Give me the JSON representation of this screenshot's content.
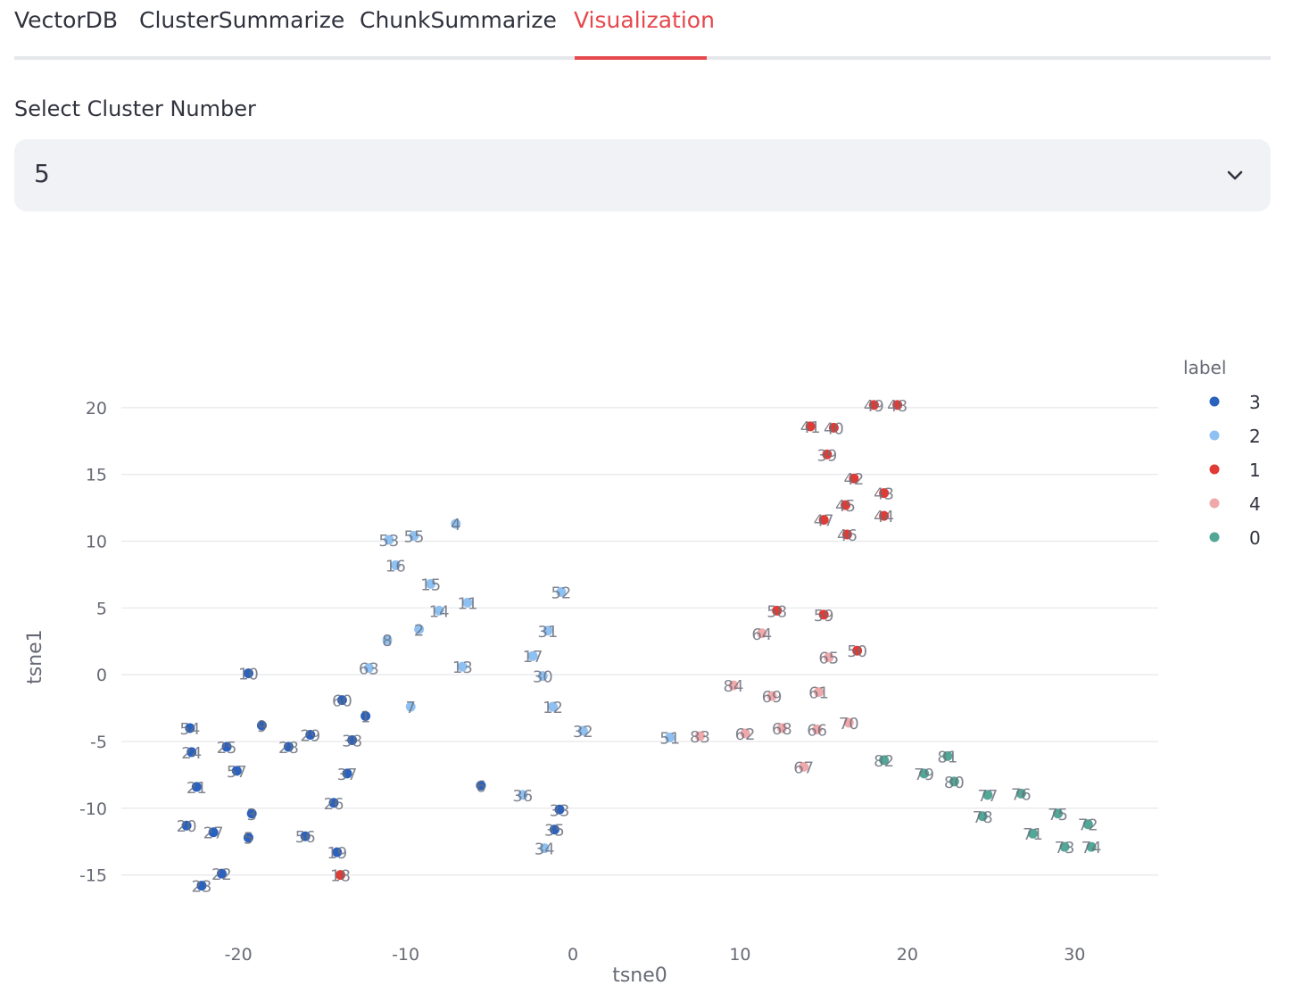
{
  "tabs": {
    "items": [
      "VectorDB",
      "ClusterSummarize",
      "ChunkSummarize",
      "Visualization"
    ],
    "active": 3
  },
  "select": {
    "label": "Select Cluster Number",
    "value": "5",
    "icon": "chevron-down-icon"
  },
  "colors": {
    "accent": "#e5484d",
    "label_3": "#2b62bd",
    "label_2": "#8ec1f2",
    "label_1": "#e03b34",
    "label_4": "#f0a9aa",
    "label_0": "#52a796"
  },
  "chart_data": {
    "type": "scatter",
    "xlabel": "tsne0",
    "ylabel": "tsne1",
    "xlim": [
      -27,
      35
    ],
    "ylim": [
      -17.5,
      23
    ],
    "xticks": [
      -20,
      -10,
      0,
      10,
      20,
      30
    ],
    "yticks": [
      -15,
      -10,
      -5,
      0,
      5,
      10,
      15,
      20
    ],
    "grid": true,
    "legend": {
      "title": "label",
      "placement": "right",
      "entries": [
        "3",
        "2",
        "1",
        "4",
        "0"
      ]
    },
    "series": [
      {
        "name": "3",
        "points": [
          {
            "id": "54",
            "x": -22.9,
            "y": -4.0
          },
          {
            "id": "24",
            "x": -22.8,
            "y": -5.8
          },
          {
            "id": "21",
            "x": -22.5,
            "y": -8.4
          },
          {
            "id": "20",
            "x": -23.1,
            "y": -11.3
          },
          {
            "id": "27",
            "x": -21.5,
            "y": -11.8
          },
          {
            "id": "22",
            "x": -21.0,
            "y": -14.9
          },
          {
            "id": "23",
            "x": -22.2,
            "y": -15.8
          },
          {
            "id": "25",
            "x": -20.7,
            "y": -5.4
          },
          {
            "id": "57",
            "x": -20.1,
            "y": -7.2
          },
          {
            "id": "10",
            "x": -19.4,
            "y": 0.1
          },
          {
            "id": "9",
            "x": -18.6,
            "y": -3.8
          },
          {
            "id": "3",
            "x": -19.2,
            "y": -10.4
          },
          {
            "id": "5",
            "x": -19.4,
            "y": -12.2
          },
          {
            "id": "28",
            "x": -17.0,
            "y": -5.4
          },
          {
            "id": "29",
            "x": -15.7,
            "y": -4.5
          },
          {
            "id": "56",
            "x": -16.0,
            "y": -12.1
          },
          {
            "id": "26",
            "x": -14.3,
            "y": -9.6
          },
          {
            "id": "19",
            "x": -14.1,
            "y": -13.3
          },
          {
            "id": "60",
            "x": -13.8,
            "y": -1.9
          },
          {
            "id": "38",
            "x": -13.2,
            "y": -4.9
          },
          {
            "id": "37",
            "x": -13.5,
            "y": -7.4
          },
          {
            "id": "1",
            "x": -12.4,
            "y": -3.1
          },
          {
            "id": "6",
            "x": -5.5,
            "y": -8.3
          },
          {
            "id": "33",
            "x": -0.8,
            "y": -10.1
          },
          {
            "id": "35",
            "x": -1.1,
            "y": -11.6
          }
        ]
      },
      {
        "name": "2",
        "points": [
          {
            "id": "53",
            "x": -11.0,
            "y": 10.1
          },
          {
            "id": "55",
            "x": -9.5,
            "y": 10.4
          },
          {
            "id": "16",
            "x": -10.6,
            "y": 8.2
          },
          {
            "id": "4",
            "x": -7.0,
            "y": 11.3
          },
          {
            "id": "15",
            "x": -8.5,
            "y": 6.8
          },
          {
            "id": "11",
            "x": -6.3,
            "y": 5.4
          },
          {
            "id": "14",
            "x": -8.0,
            "y": 4.8
          },
          {
            "id": "2",
            "x": -9.2,
            "y": 3.4
          },
          {
            "id": "8",
            "x": -11.1,
            "y": 2.6
          },
          {
            "id": "63",
            "x": -12.2,
            "y": 0.5
          },
          {
            "id": "13",
            "x": -6.6,
            "y": 0.6
          },
          {
            "id": "7",
            "x": -9.7,
            "y": -2.4
          },
          {
            "id": "52",
            "x": -0.7,
            "y": 6.2
          },
          {
            "id": "31",
            "x": -1.5,
            "y": 3.3
          },
          {
            "id": "17",
            "x": -2.4,
            "y": 1.4
          },
          {
            "id": "30",
            "x": -1.8,
            "y": -0.1
          },
          {
            "id": "12",
            "x": -1.2,
            "y": -2.4
          },
          {
            "id": "32",
            "x": 0.6,
            "y": -4.2
          },
          {
            "id": "36",
            "x": -3.0,
            "y": -9.0
          },
          {
            "id": "34",
            "x": -1.7,
            "y": -13.0
          },
          {
            "id": "51",
            "x": 5.8,
            "y": -4.7
          }
        ]
      },
      {
        "name": "1",
        "points": [
          {
            "id": "49",
            "x": 18.0,
            "y": 20.2
          },
          {
            "id": "48",
            "x": 19.4,
            "y": 20.2
          },
          {
            "id": "41",
            "x": 14.2,
            "y": 18.6
          },
          {
            "id": "40",
            "x": 15.6,
            "y": 18.5
          },
          {
            "id": "39",
            "x": 15.2,
            "y": 16.5
          },
          {
            "id": "42",
            "x": 16.8,
            "y": 14.7
          },
          {
            "id": "43",
            "x": 18.6,
            "y": 13.6
          },
          {
            "id": "45",
            "x": 16.3,
            "y": 12.7
          },
          {
            "id": "47",
            "x": 15.0,
            "y": 11.6
          },
          {
            "id": "44",
            "x": 18.6,
            "y": 11.9
          },
          {
            "id": "46",
            "x": 16.4,
            "y": 10.5
          },
          {
            "id": "58",
            "x": 12.2,
            "y": 4.8
          },
          {
            "id": "59",
            "x": 15.0,
            "y": 4.5
          },
          {
            "id": "50",
            "x": 17.0,
            "y": 1.8
          },
          {
            "id": "18",
            "x": -13.9,
            "y": -15.0
          }
        ]
      },
      {
        "name": "4",
        "points": [
          {
            "id": "64",
            "x": 11.3,
            "y": 3.1
          },
          {
            "id": "65",
            "x": 15.3,
            "y": 1.3
          },
          {
            "id": "84",
            "x": 9.6,
            "y": -0.8
          },
          {
            "id": "69",
            "x": 11.9,
            "y": -1.6
          },
          {
            "id": "61",
            "x": 14.7,
            "y": -1.3
          },
          {
            "id": "70",
            "x": 16.5,
            "y": -3.6
          },
          {
            "id": "83",
            "x": 7.6,
            "y": -4.6
          },
          {
            "id": "62",
            "x": 10.3,
            "y": -4.4
          },
          {
            "id": "68",
            "x": 12.5,
            "y": -4.0
          },
          {
            "id": "66",
            "x": 14.6,
            "y": -4.1
          },
          {
            "id": "67",
            "x": 13.8,
            "y": -6.9
          }
        ]
      },
      {
        "name": "0",
        "points": [
          {
            "id": "82",
            "x": 18.6,
            "y": -6.4
          },
          {
            "id": "81",
            "x": 22.4,
            "y": -6.1
          },
          {
            "id": "79",
            "x": 21.0,
            "y": -7.4
          },
          {
            "id": "80",
            "x": 22.8,
            "y": -8.0
          },
          {
            "id": "77",
            "x": 24.8,
            "y": -9.0
          },
          {
            "id": "76",
            "x": 26.8,
            "y": -8.9
          },
          {
            "id": "78",
            "x": 24.5,
            "y": -10.6
          },
          {
            "id": "75",
            "x": 29.0,
            "y": -10.4
          },
          {
            "id": "72",
            "x": 30.8,
            "y": -11.2
          },
          {
            "id": "71",
            "x": 27.5,
            "y": -11.9
          },
          {
            "id": "73",
            "x": 29.4,
            "y": -12.9
          },
          {
            "id": "74",
            "x": 31.0,
            "y": -12.9
          }
        ]
      }
    ]
  }
}
